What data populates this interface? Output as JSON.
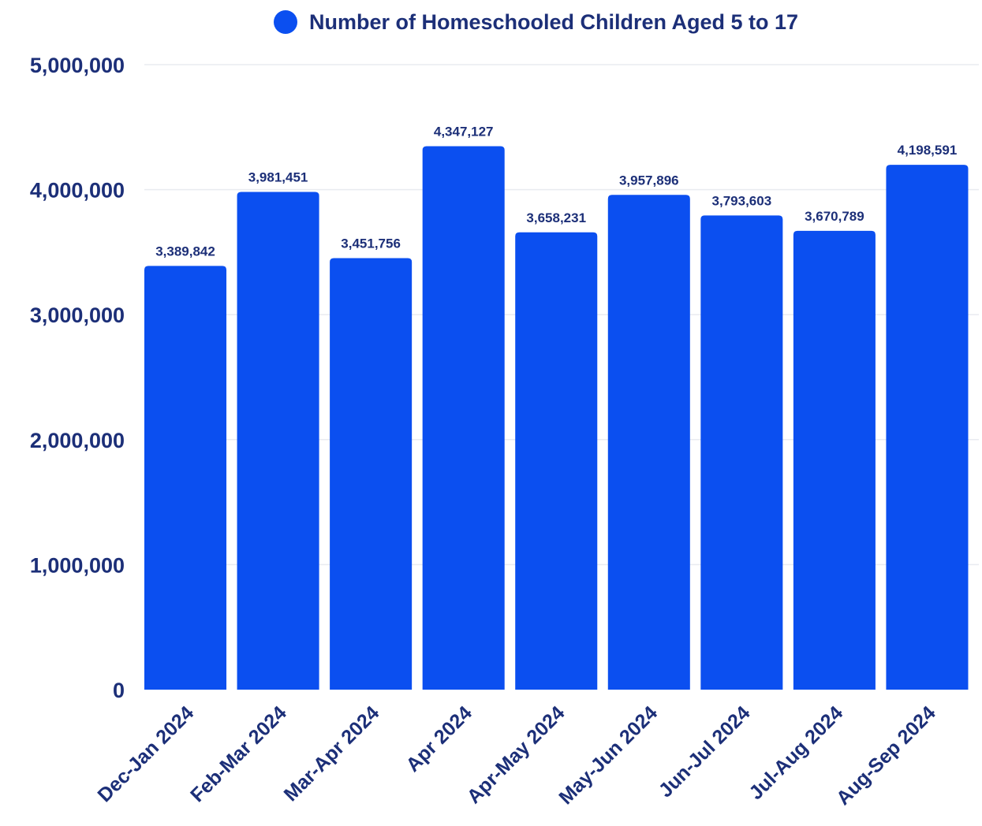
{
  "chart_data": {
    "type": "bar",
    "categories": [
      "Dec-Jan 2024",
      "Feb-Mar 2024",
      "Mar-Apr 2024",
      "Apr 2024",
      "Apr-May 2024",
      "May-Jun 2024",
      "Jun-Jul 2024",
      "Jul-Aug 2024",
      "Aug-Sep 2024"
    ],
    "series": [
      {
        "name": "Number of Homeschooled Children Aged 5 to 17",
        "values": [
          3389842,
          3981451,
          3451756,
          4347127,
          3658231,
          3957896,
          3793603,
          3670789,
          4198591
        ],
        "value_labels": [
          "3,389,842",
          "3,981,451",
          "3,451,756",
          "4,347,127",
          "3,658,231",
          "3,957,896",
          "3,793,603",
          "3,670,789",
          "4,198,591"
        ],
        "color": "#0b4ff0"
      }
    ],
    "title": "",
    "xlabel": "",
    "ylabel": "",
    "ylim": [
      0,
      5000000
    ],
    "yticks": [
      0,
      1000000,
      2000000,
      3000000,
      4000000,
      5000000
    ],
    "ytick_labels": [
      "0",
      "1,000,000",
      "2,000,000",
      "3,000,000",
      "4,000,000",
      "5,000,000"
    ],
    "grid": true,
    "legend": "top"
  }
}
